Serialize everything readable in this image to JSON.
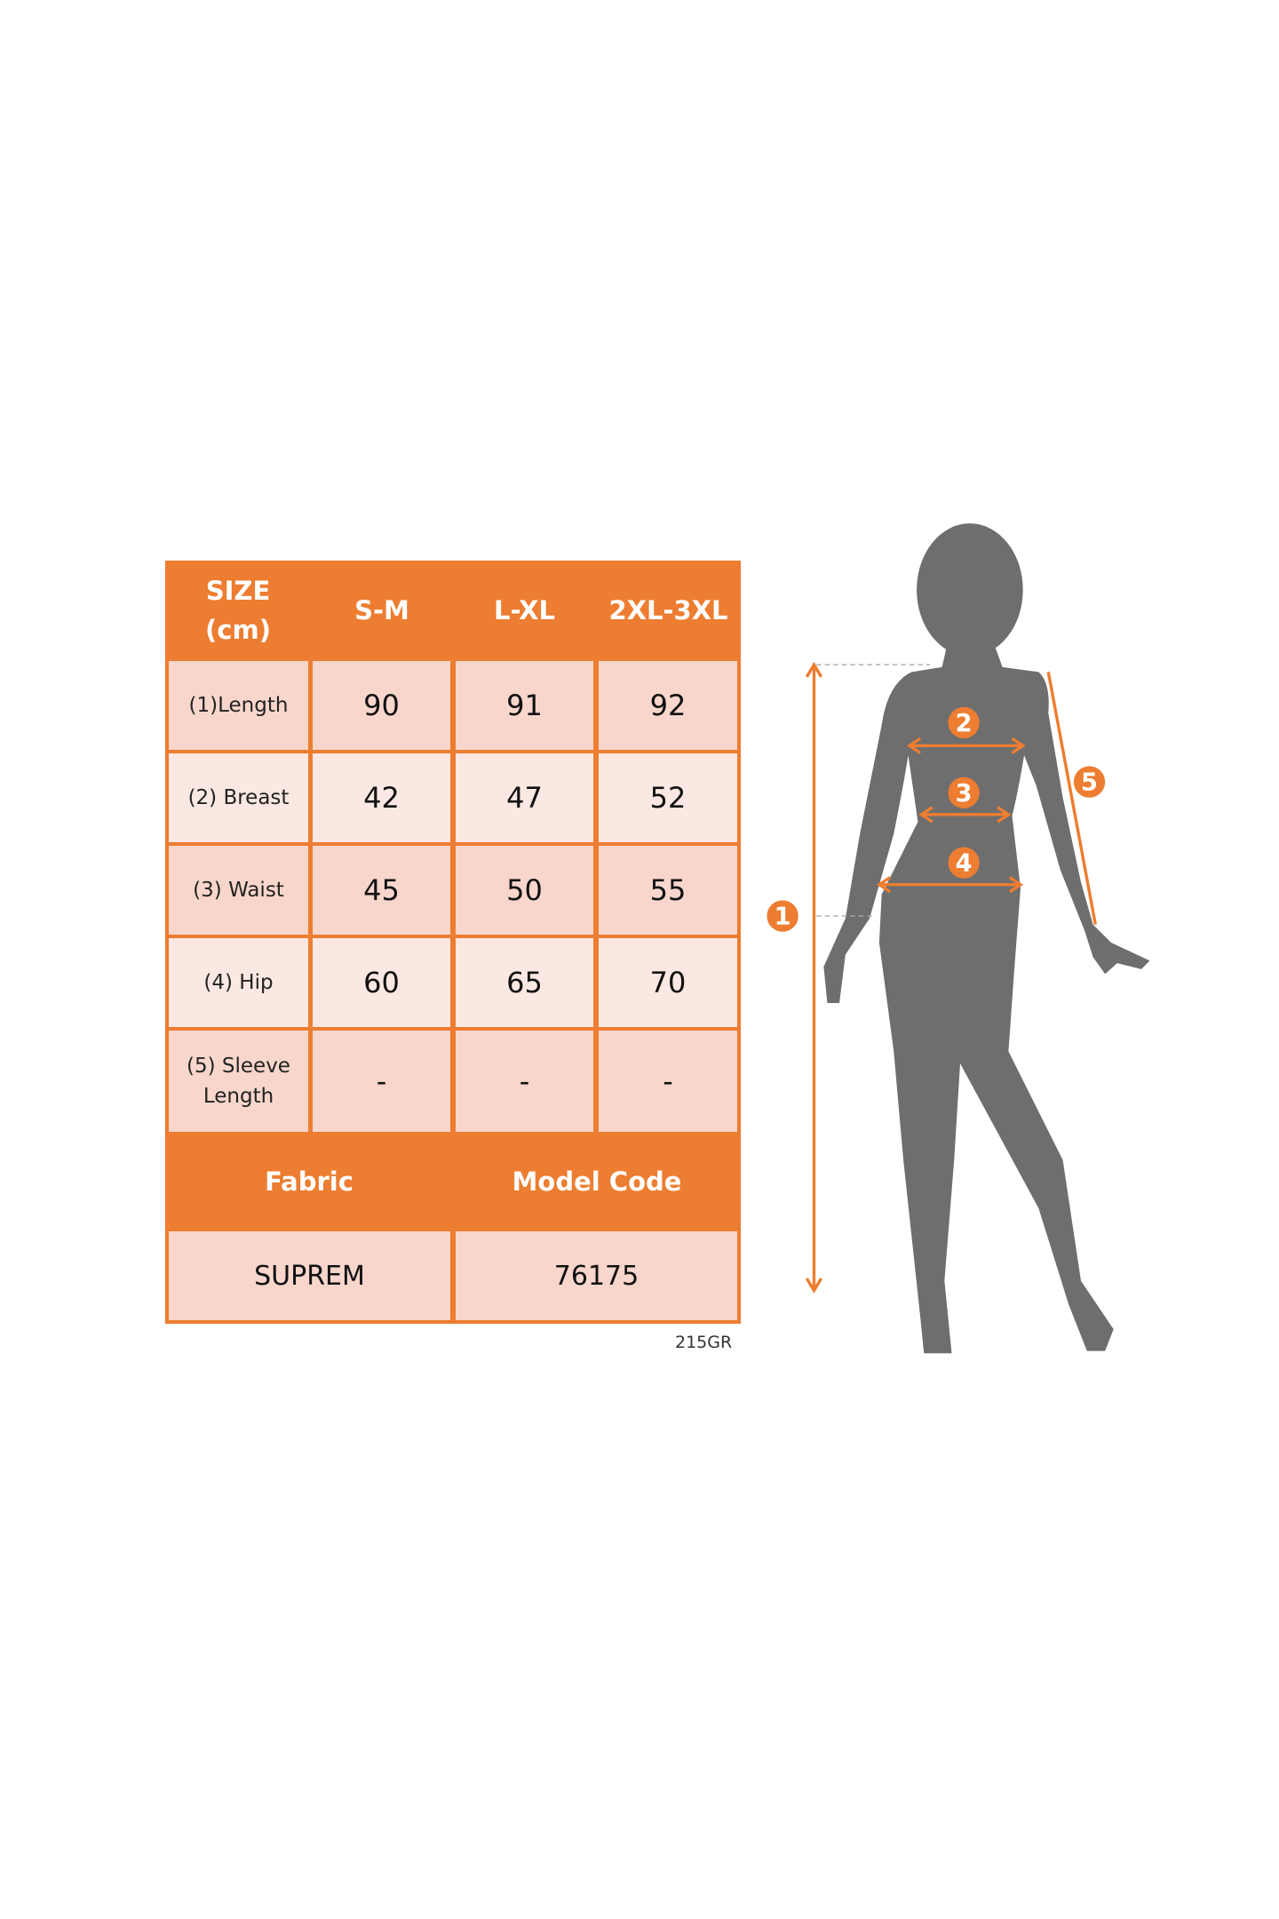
{
  "table": {
    "header": [
      "SIZE\n(cm)",
      "S-M",
      "L-XL",
      "2XL-3XL"
    ],
    "header_size_line1": "SIZE",
    "header_size_line2": "(cm)",
    "rows": [
      {
        "label": "(1)Length",
        "values": [
          "90",
          "91",
          "92"
        ]
      },
      {
        "label": "(2) Breast",
        "values": [
          "42",
          "47",
          "52"
        ]
      },
      {
        "label": "(3) Waist",
        "values": [
          "45",
          "50",
          "55"
        ]
      },
      {
        "label": "(4) Hip",
        "values": [
          "60",
          "65",
          "70"
        ]
      },
      {
        "label_line1": "(5) Sleeve",
        "label_line2": "Length",
        "values": [
          "-",
          "-",
          "-"
        ]
      }
    ],
    "footer_headers": [
      "Fabric",
      "Model Code"
    ],
    "footer_values": [
      "SUPREM",
      "76175"
    ]
  },
  "code_tag": "215GR",
  "figure": {
    "markers": [
      "1",
      "2",
      "3",
      "4",
      "5"
    ]
  },
  "colors": {
    "accent": "#ed7d31",
    "cell_dark": "#f8d6cb",
    "cell_light": "#fbe8e2",
    "silhouette": "#6e6e6e"
  }
}
